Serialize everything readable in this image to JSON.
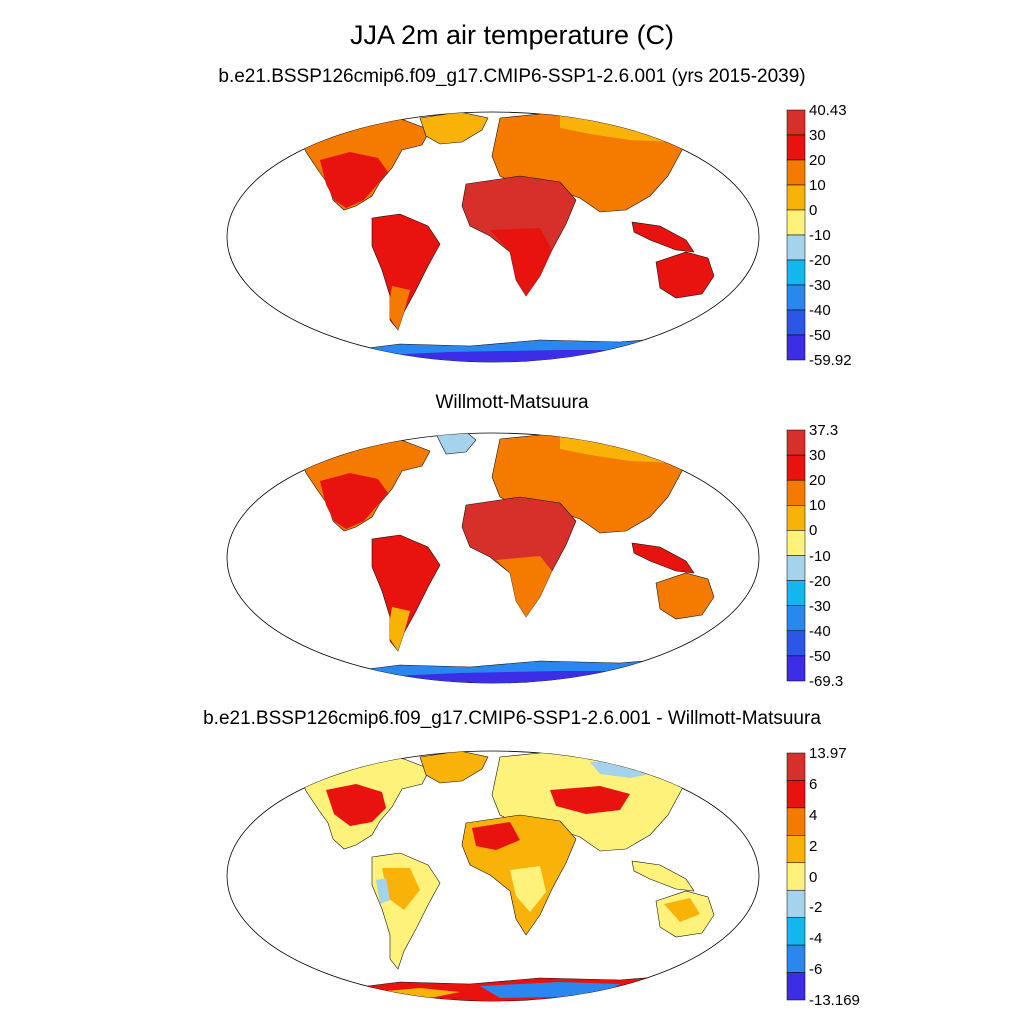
{
  "figure": {
    "title": "JJA 2m air temperature (C)"
  },
  "panels": [
    {
      "name": "model",
      "title": "b.e21.BSSP126cmip6.f09_g17.CMIP6-SSP1-2.6.001 (yrs 2015-2039)",
      "colorbar": {
        "labels": [
          "40.43",
          "30",
          "20",
          "10",
          "0",
          "-10",
          "-20",
          "-30",
          "-40",
          "-50",
          "-59.92"
        ],
        "colors": [
          "#d7302b",
          "#e8120f",
          "#f57a00",
          "#f9b208",
          "#fff27a",
          "#a6d3ec",
          "#14b6ee",
          "#2a87f0",
          "#2c56e6",
          "#3b2ee6"
        ]
      }
    },
    {
      "name": "observed",
      "title": "Willmott-Matsuura",
      "colorbar": {
        "labels": [
          "37.3",
          "30",
          "20",
          "10",
          "0",
          "-10",
          "-20",
          "-30",
          "-40",
          "-50",
          "-69.3"
        ],
        "colors": [
          "#d7302b",
          "#e8120f",
          "#f57a00",
          "#f9b208",
          "#fff27a",
          "#a6d3ec",
          "#14b6ee",
          "#2a87f0",
          "#2c56e6",
          "#3b2ee6"
        ]
      }
    },
    {
      "name": "difference",
      "title": "b.e21.BSSP126cmip6.f09_g17.CMIP6-SSP1-2.6.001 - Willmott-Matsuura",
      "colorbar": {
        "labels": [
          "13.97",
          "6",
          "4",
          "2",
          "0",
          "-2",
          "-4",
          "-6",
          "-13.169"
        ],
        "colors": [
          "#d7302b",
          "#e8120f",
          "#f57a00",
          "#f9b208",
          "#fff27a",
          "#a6d3ec",
          "#14b6ee",
          "#2a87f0",
          "#3b2ee6"
        ]
      }
    }
  ]
}
